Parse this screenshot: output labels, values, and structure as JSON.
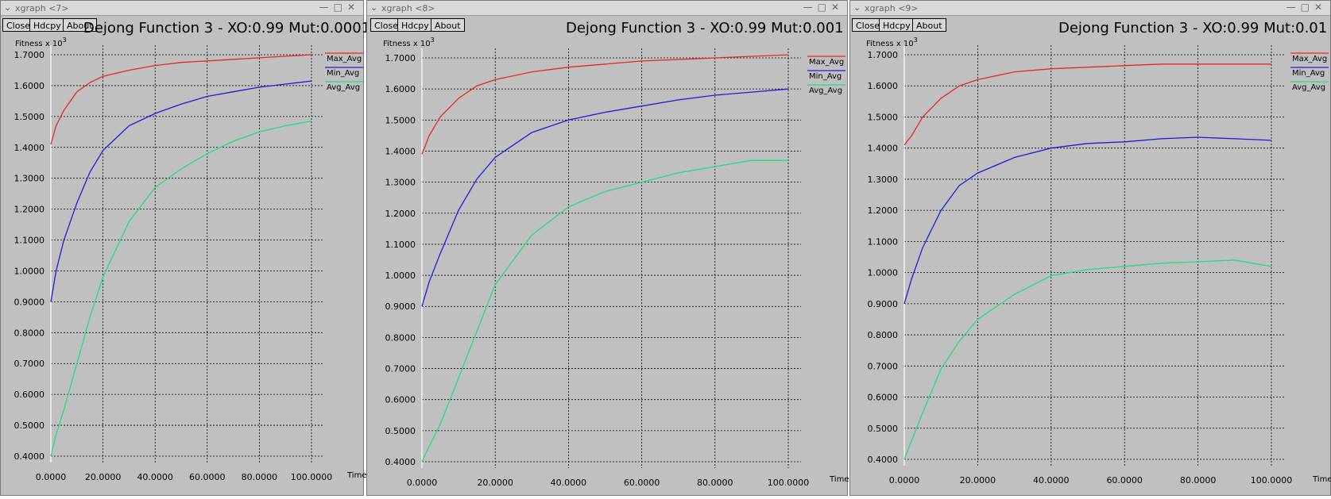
{
  "windows": [
    {
      "title": "xgraph <7>",
      "plot_title": "Dejong Function 3 - XO:0.99 Mut:0.0001"
    },
    {
      "title": "xgraph <8>",
      "plot_title": "Dejong Function 3 - XO:0.99 Mut:0.001"
    },
    {
      "title": "xgraph <9>",
      "plot_title": "Dejong Function 3 - XO:0.99 Mut:0.01"
    }
  ],
  "buttons": {
    "close": "Close",
    "hdcpy": "Hdcpy",
    "about": "About"
  },
  "ylabel": "Fitness x 10",
  "ylabel_exp": "3",
  "xlabel": "Time",
  "legend": [
    "Max_Avg",
    "Min_Avg",
    "Avg_Avg"
  ],
  "colors": {
    "Max_Avg": "#e8281e",
    "Min_Avg": "#1c1ce0",
    "Avg_Avg": "#22e07a"
  },
  "xticks": [
    "0.0000",
    "20.0000",
    "40.0000",
    "60.0000",
    "80.0000",
    "100.0000"
  ],
  "yticks": [
    "0.4000",
    "0.5000",
    "0.6000",
    "0.7000",
    "0.8000",
    "0.9000",
    "1.0000",
    "1.1000",
    "1.2000",
    "1.3000",
    "1.4000",
    "1.5000",
    "1.6000",
    "1.7000"
  ],
  "chart_data": [
    {
      "type": "line",
      "title": "Dejong Function 3 - XO:0.99 Mut:0.0001",
      "xlabel": "Time",
      "ylabel": "Fitness x 10^3",
      "xlim": [
        0,
        100
      ],
      "ylim": [
        0.4,
        1.7
      ],
      "grid": true,
      "legend": "top-right",
      "x": [
        0,
        2,
        5,
        10,
        15,
        20,
        30,
        40,
        50,
        60,
        70,
        80,
        90,
        100
      ],
      "series": [
        {
          "name": "Max_Avg",
          "color": "#e8281e",
          "values": [
            1.41,
            1.47,
            1.52,
            1.58,
            1.61,
            1.63,
            1.65,
            1.665,
            1.675,
            1.68,
            1.685,
            1.69,
            1.695,
            1.7
          ]
        },
        {
          "name": "Min_Avg",
          "color": "#1c1ce0",
          "values": [
            0.9,
            1.0,
            1.1,
            1.22,
            1.32,
            1.39,
            1.47,
            1.51,
            1.54,
            1.565,
            1.58,
            1.595,
            1.605,
            1.615
          ]
        },
        {
          "name": "Avg_Avg",
          "color": "#22e07a",
          "values": [
            0.4,
            0.47,
            0.55,
            0.7,
            0.85,
            0.98,
            1.16,
            1.27,
            1.33,
            1.38,
            1.42,
            1.45,
            1.47,
            1.485
          ]
        }
      ]
    },
    {
      "type": "line",
      "title": "Dejong Function 3 - XO:0.99 Mut:0.001",
      "xlabel": "Time",
      "ylabel": "Fitness x 10^3",
      "xlim": [
        0,
        100
      ],
      "ylim": [
        0.4,
        1.7
      ],
      "grid": true,
      "legend": "top-right",
      "x": [
        0,
        2,
        5,
        10,
        15,
        20,
        30,
        40,
        50,
        60,
        70,
        80,
        90,
        100
      ],
      "series": [
        {
          "name": "Max_Avg",
          "color": "#e8281e",
          "values": [
            1.39,
            1.45,
            1.51,
            1.57,
            1.61,
            1.63,
            1.655,
            1.67,
            1.68,
            1.69,
            1.695,
            1.7,
            1.705,
            1.71
          ]
        },
        {
          "name": "Min_Avg",
          "color": "#1c1ce0",
          "values": [
            0.9,
            0.98,
            1.07,
            1.21,
            1.31,
            1.38,
            1.46,
            1.5,
            1.525,
            1.545,
            1.565,
            1.58,
            1.59,
            1.6
          ]
        },
        {
          "name": "Avg_Avg",
          "color": "#22e07a",
          "values": [
            0.4,
            0.45,
            0.52,
            0.67,
            0.82,
            0.97,
            1.13,
            1.22,
            1.27,
            1.3,
            1.33,
            1.35,
            1.37,
            1.37
          ]
        }
      ]
    },
    {
      "type": "line",
      "title": "Dejong Function 3 - XO:0.99 Mut:0.01",
      "xlabel": "Time",
      "ylabel": "Fitness x 10^3",
      "xlim": [
        0,
        100
      ],
      "ylim": [
        0.4,
        1.7
      ],
      "grid": true,
      "legend": "top-right",
      "x": [
        0,
        2,
        5,
        10,
        15,
        20,
        30,
        40,
        50,
        60,
        70,
        80,
        90,
        100
      ],
      "series": [
        {
          "name": "Max_Avg",
          "color": "#e8281e",
          "values": [
            1.41,
            1.44,
            1.5,
            1.56,
            1.6,
            1.62,
            1.645,
            1.655,
            1.66,
            1.665,
            1.67,
            1.67,
            1.67,
            1.67
          ]
        },
        {
          "name": "Min_Avg",
          "color": "#1c1ce0",
          "values": [
            0.9,
            0.98,
            1.08,
            1.2,
            1.28,
            1.32,
            1.37,
            1.4,
            1.415,
            1.42,
            1.43,
            1.435,
            1.43,
            1.425
          ]
        },
        {
          "name": "Avg_Avg",
          "color": "#22e07a",
          "values": [
            0.4,
            0.46,
            0.55,
            0.69,
            0.78,
            0.85,
            0.93,
            0.99,
            1.01,
            1.02,
            1.03,
            1.035,
            1.04,
            1.02
          ]
        }
      ]
    }
  ]
}
